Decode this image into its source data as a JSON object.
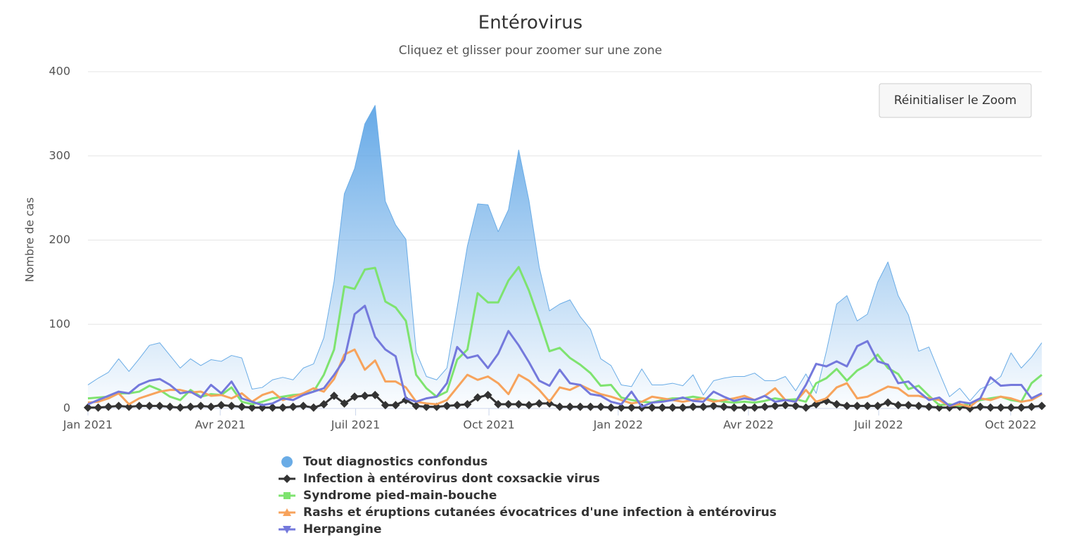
{
  "chart_data": {
    "type": "line",
    "title": "Entérovirus",
    "subtitle": "Cliquez et glisser pour zoomer sur une zone",
    "y_label": "Nombre de cas",
    "reset_button": "Réinitialiser le Zoom",
    "xlim": [
      0,
      93
    ],
    "xticks": [
      {
        "value": 0,
        "label": "Jan 2021"
      },
      {
        "value": 12.9,
        "label": "Avr 2021"
      },
      {
        "value": 26.1,
        "label": "Juil 2021"
      },
      {
        "value": 39.1,
        "label": "Oct 2021"
      },
      {
        "value": 51.7,
        "label": "Jan 2022"
      },
      {
        "value": 64.4,
        "label": "Avr 2022"
      },
      {
        "value": 77.1,
        "label": "Juil 2022"
      },
      {
        "value": 89.97,
        "label": "Oct 2022"
      }
    ],
    "ylim": [
      0,
      400
    ],
    "yticks": [
      0,
      100,
      200,
      300,
      400
    ],
    "grid": true,
    "series": [
      {
        "name": "Tout diagnostics confondus",
        "type": "area",
        "color": "#6aace6",
        "values": [
          28,
          36,
          43,
          59,
          44,
          59,
          75,
          78,
          63,
          48,
          59,
          51,
          58,
          56,
          63,
          60,
          23,
          25,
          34,
          37,
          34,
          48,
          53,
          84,
          151,
          255,
          285,
          338,
          360,
          246,
          218,
          201,
          67,
          38,
          34,
          48,
          120,
          193,
          243,
          242,
          210,
          236,
          307,
          247,
          168,
          116,
          124,
          129,
          109,
          94,
          59,
          51,
          28,
          26,
          47,
          28,
          28,
          30,
          27,
          40,
          16,
          33,
          36,
          38,
          38,
          42,
          33,
          33,
          38,
          21,
          41,
          18,
          68,
          124,
          134,
          104,
          112,
          150,
          174,
          134,
          111,
          68,
          73,
          43,
          14,
          24,
          9,
          23,
          29,
          38,
          66,
          48,
          61,
          78
        ]
      },
      {
        "name": "Infection à entérovirus dont coxsackie virus",
        "color": "#333333",
        "marker": "diamond",
        "values": [
          1,
          1,
          2,
          3,
          2,
          3,
          3,
          3,
          2,
          1,
          2,
          3,
          2,
          4,
          3,
          2,
          1,
          1,
          1,
          1,
          2,
          3,
          1,
          5,
          15,
          6,
          14,
          15,
          16,
          4,
          4,
          10,
          3,
          2,
          2,
          3,
          4,
          5,
          13,
          16,
          5,
          5,
          5,
          4,
          6,
          6,
          2,
          2,
          2,
          2,
          2,
          1,
          1,
          1,
          1,
          1,
          1,
          1,
          1,
          2,
          2,
          3,
          2,
          1,
          1,
          1,
          2,
          3,
          4,
          3,
          1,
          5,
          9,
          5,
          3,
          3,
          3,
          3,
          7,
          4,
          4,
          3,
          2,
          1,
          1,
          2,
          0,
          2,
          1,
          1,
          1,
          1,
          2,
          3
        ]
      },
      {
        "name": "Syndrome pied-main-bouche",
        "color": "#7ee36f",
        "values": [
          12,
          13,
          14,
          18,
          18,
          20,
          27,
          22,
          14,
          10,
          22,
          14,
          17,
          16,
          25,
          8,
          5,
          8,
          12,
          14,
          16,
          17,
          20,
          40,
          70,
          145,
          142,
          165,
          167,
          127,
          120,
          104,
          40,
          24,
          14,
          20,
          58,
          70,
          137,
          126,
          126,
          152,
          168,
          140,
          105,
          68,
          72,
          60,
          52,
          42,
          27,
          28,
          13,
          10,
          8,
          7,
          10,
          12,
          12,
          14,
          12,
          10,
          8,
          7,
          8,
          7,
          9,
          12,
          10,
          11,
          8,
          30,
          36,
          47,
          33,
          45,
          52,
          64,
          48,
          41,
          23,
          27,
          15,
          4,
          5,
          3,
          6,
          10,
          12,
          14,
          10,
          8,
          30,
          40
        ]
      },
      {
        "name": "Rashs et éruptions cutanées évocatrices d'une infection à entérovirus",
        "color": "#f7a35c",
        "values": [
          7,
          8,
          12,
          18,
          5,
          12,
          16,
          20,
          22,
          22,
          19,
          20,
          15,
          16,
          12,
          18,
          8,
          16,
          20,
          10,
          14,
          18,
          24,
          20,
          35,
          64,
          70,
          46,
          57,
          32,
          32,
          25,
          8,
          6,
          5,
          10,
          25,
          40,
          34,
          38,
          30,
          17,
          40,
          33,
          22,
          8,
          25,
          22,
          28,
          22,
          17,
          14,
          10,
          6,
          8,
          14,
          12,
          10,
          8,
          10,
          12,
          8,
          10,
          12,
          15,
          10,
          15,
          24,
          10,
          8,
          22,
          8,
          12,
          25,
          30,
          12,
          14,
          20,
          26,
          24,
          15,
          15,
          12,
          10,
          3,
          5,
          2,
          12,
          10,
          14,
          12,
          8,
          10,
          17
        ]
      },
      {
        "name": "Herpangine",
        "color": "#7479dc",
        "values": [
          5,
          10,
          15,
          20,
          18,
          28,
          33,
          35,
          28,
          18,
          20,
          13,
          28,
          18,
          32,
          12,
          8,
          4,
          6,
          12,
          10,
          16,
          20,
          24,
          40,
          58,
          112,
          122,
          85,
          70,
          62,
          12,
          8,
          12,
          14,
          30,
          73,
          60,
          63,
          48,
          65,
          92,
          75,
          55,
          33,
          27,
          46,
          30,
          28,
          17,
          15,
          8,
          5,
          20,
          2,
          7,
          8,
          10,
          13,
          9,
          8,
          20,
          14,
          9,
          12,
          10,
          15,
          8,
          10,
          8,
          28,
          53,
          50,
          56,
          50,
          74,
          80,
          56,
          52,
          30,
          32,
          20,
          10,
          13,
          3,
          8,
          6,
          12,
          37,
          27,
          28,
          28,
          12,
          18
        ]
      }
    ]
  }
}
